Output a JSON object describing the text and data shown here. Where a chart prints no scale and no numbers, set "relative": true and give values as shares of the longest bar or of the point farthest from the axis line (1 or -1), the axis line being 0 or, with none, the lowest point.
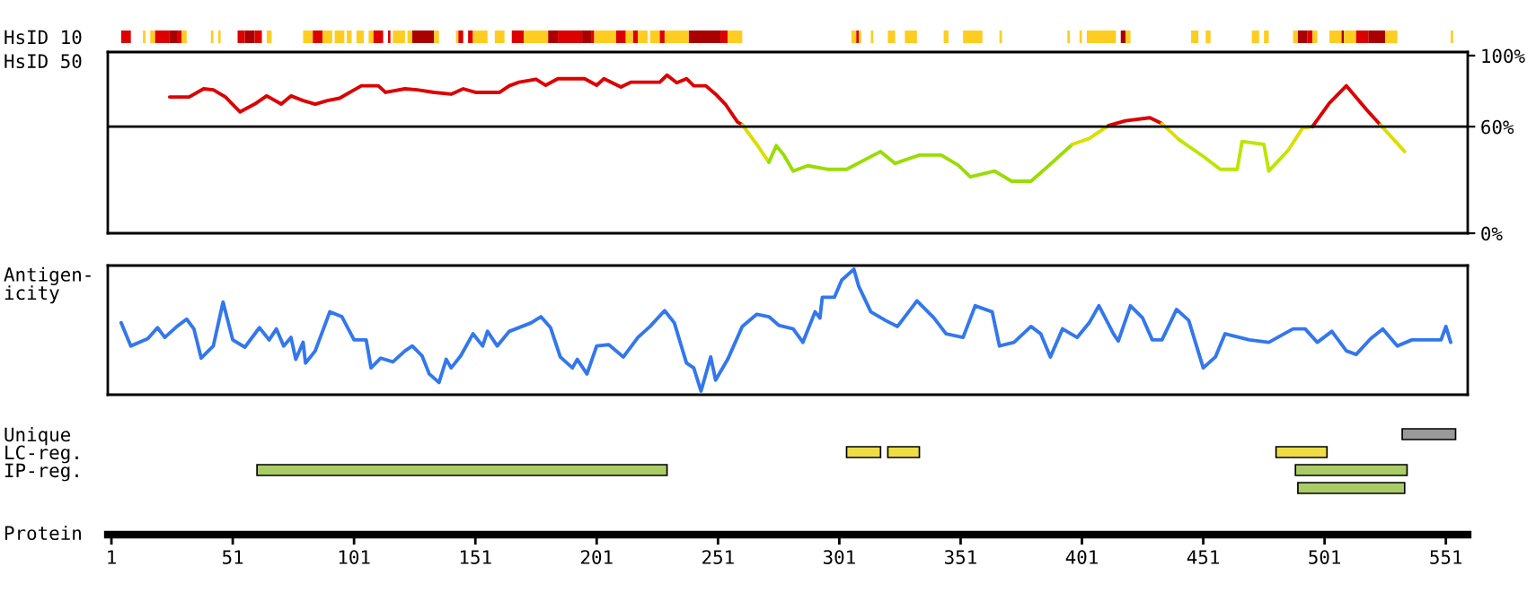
{
  "chart_data": [
    {
      "type": "bar",
      "orientation": "horizontal",
      "categories": [
        "HsID 10"
      ],
      "xlim": [
        -0.5,
        560
      ],
      "tick_labels": "y",
      "series": [
        {
          "color": "#dd0000",
          "base": [
            5
          ],
          "values": [
            4
          ]
        },
        {
          "color": "#ffcc22",
          "base": [
            14
          ],
          "values": [
            1
          ]
        },
        {
          "color": "#ffcc22",
          "base": [
            17
          ],
          "values": [
            2
          ]
        },
        {
          "color": "#dd0000",
          "base": [
            19
          ],
          "values": [
            6
          ]
        },
        {
          "color": "#aa0000",
          "base": [
            25
          ],
          "values": [
            3
          ]
        },
        {
          "color": "#dd0000",
          "base": [
            28
          ],
          "values": [
            2
          ]
        },
        {
          "color": "#ffcc22",
          "base": [
            30
          ],
          "values": [
            2
          ]
        },
        {
          "color": "#ffcc22",
          "base": [
            42
          ],
          "values": [
            1
          ]
        },
        {
          "color": "#ffcc22",
          "base": [
            45
          ],
          "values": [
            1
          ]
        },
        {
          "color": "#dd0000",
          "base": [
            53
          ],
          "values": [
            3
          ]
        },
        {
          "color": "#aa0000",
          "base": [
            56
          ],
          "values": [
            4
          ]
        },
        {
          "color": "#dd0000",
          "base": [
            60
          ],
          "values": [
            3
          ]
        },
        {
          "color": "#ffcc22",
          "base": [
            65
          ],
          "values": [
            2
          ]
        },
        {
          "color": "#ffcc22",
          "base": [
            80
          ],
          "values": [
            4
          ]
        },
        {
          "color": "#dd0000",
          "base": [
            84
          ],
          "values": [
            4
          ]
        },
        {
          "color": "#ffcc22",
          "base": [
            88
          ],
          "values": [
            4
          ]
        },
        {
          "color": "#ffcc22",
          "base": [
            93
          ],
          "values": [
            4
          ]
        },
        {
          "color": "#ffcc22",
          "base": [
            98
          ],
          "values": [
            2
          ]
        },
        {
          "color": "#ffcc22",
          "base": [
            102
          ],
          "values": [
            3
          ]
        },
        {
          "color": "#ffcc22",
          "base": [
            107
          ],
          "values": [
            2
          ]
        },
        {
          "color": "#dd0000",
          "base": [
            109
          ],
          "values": [
            4
          ]
        },
        {
          "color": "#dd0000",
          "base": [
            115
          ],
          "values": [
            1
          ]
        },
        {
          "color": "#ffcc22",
          "base": [
            117
          ],
          "values": [
            5
          ]
        },
        {
          "color": "#ffcc22",
          "base": [
            123
          ],
          "values": [
            2
          ]
        },
        {
          "color": "#aa0000",
          "base": [
            125
          ],
          "values": [
            9
          ]
        },
        {
          "color": "#ffcc22",
          "base": [
            134
          ],
          "values": [
            2
          ]
        },
        {
          "color": "#ffcc22",
          "base": [
            143
          ],
          "values": [
            1
          ]
        },
        {
          "color": "#dd0000",
          "base": [
            144
          ],
          "values": [
            2
          ]
        },
        {
          "color": "#dd0000",
          "base": [
            148
          ],
          "values": [
            2
          ]
        },
        {
          "color": "#ffcc22",
          "base": [
            150
          ],
          "values": [
            6
          ]
        },
        {
          "color": "#ffcc22",
          "base": [
            159
          ],
          "values": [
            4
          ]
        },
        {
          "color": "#dd0000",
          "base": [
            166
          ],
          "values": [
            5
          ]
        },
        {
          "color": "#ffcc22",
          "base": [
            171
          ],
          "values": [
            10
          ]
        },
        {
          "color": "#aa0000",
          "base": [
            181
          ],
          "values": [
            4
          ]
        },
        {
          "color": "#dd0000",
          "base": [
            185
          ],
          "values": [
            10
          ]
        },
        {
          "color": "#aa0000",
          "base": [
            195
          ],
          "values": [
            4
          ]
        },
        {
          "color": "#dd0000",
          "base": [
            199
          ],
          "values": [
            1
          ]
        },
        {
          "color": "#ffcc22",
          "base": [
            200
          ],
          "values": [
            9
          ]
        },
        {
          "color": "#dd0000",
          "base": [
            209
          ],
          "values": [
            4
          ]
        },
        {
          "color": "#ffcc22",
          "base": [
            213
          ],
          "values": [
            3
          ]
        },
        {
          "color": "#dd0000",
          "base": [
            216
          ],
          "values": [
            2
          ]
        },
        {
          "color": "#ffcc22",
          "base": [
            218
          ],
          "values": [
            4
          ]
        },
        {
          "color": "#ffcc22",
          "base": [
            223
          ],
          "values": [
            4
          ]
        },
        {
          "color": "#dd0000",
          "base": [
            227
          ],
          "values": [
            2
          ]
        },
        {
          "color": "#ffcc22",
          "base": [
            229
          ],
          "values": [
            10
          ]
        },
        {
          "color": "#aa0000",
          "base": [
            239
          ],
          "values": [
            13
          ]
        },
        {
          "color": "#dd0000",
          "base": [
            252
          ],
          "values": [
            3
          ]
        },
        {
          "color": "#ffcc22",
          "base": [
            255
          ],
          "values": [
            6
          ]
        },
        {
          "color": "#ffcc22",
          "base": [
            306
          ],
          "values": [
            2
          ]
        },
        {
          "color": "#dd0000",
          "base": [
            308
          ],
          "values": [
            1
          ]
        },
        {
          "color": "#ffcc22",
          "base": [
            309
          ],
          "values": [
            1
          ]
        },
        {
          "color": "#ffcc22",
          "base": [
            314
          ],
          "values": [
            1
          ]
        },
        {
          "color": "#ffcc22",
          "base": [
            321
          ],
          "values": [
            3
          ]
        },
        {
          "color": "#ffcc22",
          "base": [
            328
          ],
          "values": [
            5
          ]
        },
        {
          "color": "#ffcc22",
          "base": [
            344
          ],
          "values": [
            2
          ]
        },
        {
          "color": "#ffcc22",
          "base": [
            352
          ],
          "values": [
            8
          ]
        },
        {
          "color": "#ffcc22",
          "base": [
            367
          ],
          "values": [
            1
          ]
        },
        {
          "color": "#ffcc22",
          "base": [
            395
          ],
          "values": [
            1
          ]
        },
        {
          "color": "#ffcc22",
          "base": [
            400
          ],
          "values": [
            1
          ]
        },
        {
          "color": "#ffcc22",
          "base": [
            403
          ],
          "values": [
            12
          ]
        },
        {
          "color": "#aa0000",
          "base": [
            417
          ],
          "values": [
            2
          ]
        },
        {
          "color": "#ffcc22",
          "base": [
            419
          ],
          "values": [
            2
          ]
        },
        {
          "color": "#ffcc22",
          "base": [
            446
          ],
          "values": [
            3
          ]
        },
        {
          "color": "#ffcc22",
          "base": [
            452
          ],
          "values": [
            2
          ]
        },
        {
          "color": "#ffcc22",
          "base": [
            471
          ],
          "values": [
            3
          ]
        },
        {
          "color": "#ffcc22",
          "base": [
            476
          ],
          "values": [
            2
          ]
        },
        {
          "color": "#ffcc22",
          "base": [
            488
          ],
          "values": [
            2
          ]
        },
        {
          "color": "#aa0000",
          "base": [
            490
          ],
          "values": [
            4
          ]
        },
        {
          "color": "#dd0000",
          "base": [
            494
          ],
          "values": [
            2
          ]
        },
        {
          "color": "#ffcc22",
          "base": [
            496
          ],
          "values": [
            2
          ]
        },
        {
          "color": "#ffcc22",
          "base": [
            503
          ],
          "values": [
            5
          ]
        },
        {
          "color": "#aa0000",
          "base": [
            508
          ],
          "values": [
            1
          ]
        },
        {
          "color": "#ffcc22",
          "base": [
            509
          ],
          "values": [
            5
          ]
        },
        {
          "color": "#dd0000",
          "base": [
            514
          ],
          "values": [
            5
          ]
        },
        {
          "color": "#aa0000",
          "base": [
            519
          ],
          "values": [
            7
          ]
        },
        {
          "color": "#ffcc22",
          "base": [
            526
          ],
          "values": [
            5
          ]
        },
        {
          "color": "#ffcc22",
          "base": [
            553
          ],
          "values": [
            1
          ]
        }
      ]
    },
    {
      "type": "line",
      "ylabel": "HsID 50",
      "xlim": [
        -0.5,
        560
      ],
      "ylim": [
        0,
        102
      ],
      "yticks": [
        {
          "value": 0,
          "label": "0%"
        },
        {
          "value": 60,
          "label": "60%"
        },
        {
          "value": 100,
          "label": "100%"
        }
      ],
      "tick_labels": "y",
      "ref_lines": [
        {
          "axis": "y",
          "value": 60,
          "color": "#000000"
        }
      ],
      "series": [
        {
          "color": "#dd0000",
          "x": [
            25,
            33,
            39,
            43,
            48,
            54,
            60,
            65,
            71,
            75,
            80,
            85,
            90,
            95,
            104,
            111,
            114,
            122,
            127,
            134,
            141,
            146,
            151,
            161,
            165,
            169,
            176,
            180,
            185,
            196,
            201,
            204,
            211,
            215,
            227,
            230,
            234,
            238,
            241,
            246,
            250,
            254,
            259,
            261
          ],
          "values": [
            76.7,
            76.7,
            81.3,
            80.7,
            76.7,
            68.3,
            72.7,
            77.3,
            72.7,
            77.3,
            74.7,
            72.7,
            74.7,
            76,
            83,
            83,
            79.3,
            81.3,
            80.7,
            79.3,
            78.3,
            81.3,
            79.3,
            79.3,
            83,
            85,
            86.7,
            83.3,
            87,
            87,
            83.3,
            87,
            82.3,
            85,
            85,
            89,
            84.7,
            87,
            83,
            83,
            78.3,
            72.7,
            62.7,
            61
          ]
        },
        {
          "color": "#dddd00",
          "x": [
            261,
            267,
            272
          ],
          "values": [
            61,
            50,
            40
          ]
        },
        {
          "color": "#99dd00",
          "x": [
            272,
            275,
            278,
            282,
            288,
            296,
            304,
            318,
            324,
            334,
            343,
            350,
            355,
            365,
            372,
            380,
            387,
            397
          ],
          "values": [
            40,
            49.3,
            44.3,
            35,
            38,
            36,
            36,
            46,
            39.3,
            44,
            44,
            38.3,
            31.7,
            35,
            29.3,
            29.3,
            37.7,
            50
          ]
        },
        {
          "color": "#dddd00",
          "x": [
            397,
            404,
            412
          ],
          "values": [
            50,
            53.3,
            60.7
          ]
        },
        {
          "color": "#dd0000",
          "x": [
            412,
            419,
            429,
            434
          ],
          "values": [
            60.7,
            63.3,
            65,
            61.7
          ]
        },
        {
          "color": "#dddd00",
          "x": [
            434,
            441
          ],
          "values": [
            61.7,
            52.7
          ]
        },
        {
          "color": "#bbe600",
          "x": [
            441,
            451,
            458,
            465,
            467,
            476,
            478,
            486
          ],
          "values": [
            52.7,
            43.3,
            36,
            36,
            51.7,
            50,
            35,
            46.7
          ]
        },
        {
          "color": "#dddd00",
          "x": [
            486,
            492,
            496
          ],
          "values": [
            46.7,
            59.3,
            60
          ]
        },
        {
          "color": "#dd0000",
          "x": [
            496,
            503,
            510,
            518,
            524
          ],
          "values": [
            60,
            73.3,
            83,
            70,
            61
          ]
        },
        {
          "color": "#dddd00",
          "x": [
            524,
            534
          ],
          "values": [
            61,
            46
          ]
        }
      ]
    },
    {
      "type": "line",
      "ylabel": "Antigen-\nicity",
      "xlim": [
        -0.5,
        560
      ],
      "relative": true,
      "tick_labels": false,
      "series": [
        {
          "color": "#3377ee",
          "x": [
            5,
            9,
            16,
            20,
            23,
            28,
            32,
            35,
            38,
            43,
            47,
            51,
            56,
            62,
            66,
            69,
            72,
            75,
            77,
            80,
            81,
            85,
            91,
            96,
            101,
            106,
            108,
            112,
            117,
            122,
            125,
            129,
            132,
            136,
            139,
            141,
            145,
            150,
            154,
            156,
            160,
            165,
            174,
            178,
            182,
            186,
            191,
            193,
            197,
            201,
            206,
            212,
            218,
            223,
            229,
            233,
            238,
            241,
            244,
            248,
            250,
            255,
            261,
            267,
            272,
            276,
            282,
            286,
            291,
            293,
            294,
            299,
            302,
            307,
            309,
            314,
            320,
            325,
            333,
            340,
            345,
            352,
            357,
            364,
            367,
            373,
            380,
            384,
            388,
            393,
            399,
            404,
            408,
            414,
            416,
            421,
            426,
            430,
            434,
            440,
            445,
            451,
            456,
            460,
            470,
            478,
            488,
            493,
            498,
            504,
            510,
            514,
            520,
            525,
            531,
            537,
            542,
            549,
            551,
            553
          ],
          "values": [
            0.56,
            0.37,
            0.43,
            0.52,
            0.44,
            0.53,
            0.59,
            0.51,
            0.27,
            0.37,
            0.73,
            0.42,
            0.36,
            0.52,
            0.42,
            0.51,
            0.37,
            0.44,
            0.26,
            0.4,
            0.23,
            0.33,
            0.65,
            0.61,
            0.42,
            0.42,
            0.19,
            0.27,
            0.24,
            0.33,
            0.37,
            0.29,
            0.14,
            0.07,
            0.26,
            0.19,
            0.29,
            0.47,
            0.37,
            0.49,
            0.37,
            0.49,
            0.56,
            0.61,
            0.52,
            0.28,
            0.19,
            0.26,
            0.14,
            0.37,
            0.38,
            0.28,
            0.44,
            0.53,
            0.66,
            0.56,
            0.23,
            0.19,
            0,
            0.28,
            0.09,
            0.26,
            0.53,
            0.63,
            0.61,
            0.54,
            0.51,
            0.4,
            0.65,
            0.6,
            0.77,
            0.77,
            0.91,
            1,
            0.86,
            0.65,
            0.58,
            0.53,
            0.74,
            0.6,
            0.47,
            0.44,
            0.7,
            0.65,
            0.37,
            0.4,
            0.53,
            0.47,
            0.28,
            0.51,
            0.44,
            0.56,
            0.7,
            0.47,
            0.41,
            0.7,
            0.6,
            0.42,
            0.42,
            0.67,
            0.58,
            0.19,
            0.28,
            0.47,
            0.42,
            0.4,
            0.51,
            0.51,
            0.4,
            0.49,
            0.33,
            0.3,
            0.43,
            0.51,
            0.37,
            0.42,
            0.42,
            0.42,
            0.53,
            0.4
          ]
        }
      ]
    },
    {
      "type": "bar",
      "orientation": "horizontal",
      "categories": [
        "Unique",
        "LC-reg.",
        "IP-reg.",
        null
      ],
      "xlabel": "Protein",
      "xlim": [
        -0.5,
        560
      ],
      "xticks": [
        1,
        51,
        101,
        151,
        201,
        251,
        301,
        351,
        401,
        451,
        501,
        551
      ],
      "series": [
        {
          "color": "#999999",
          "base": [
            533,
            null,
            null,
            null
          ],
          "values": [
            22,
            null,
            null,
            null
          ]
        },
        {
          "color": "#eedd44",
          "base": [
            null,
            304,
            null,
            null
          ],
          "values": [
            null,
            14,
            null,
            null
          ]
        },
        {
          "color": "#eedd44",
          "base": [
            null,
            321,
            null,
            null
          ],
          "values": [
            null,
            13,
            null,
            null
          ]
        },
        {
          "color": "#eedd44",
          "base": [
            null,
            481,
            null,
            null
          ],
          "values": [
            null,
            21,
            null,
            null
          ]
        },
        {
          "color": "#aacc66",
          "base": [
            null,
            null,
            61,
            null
          ],
          "values": [
            null,
            null,
            169,
            null
          ]
        },
        {
          "color": "#aacc66",
          "base": [
            null,
            null,
            489,
            null
          ],
          "values": [
            null,
            null,
            46,
            null
          ]
        },
        {
          "color": "#aacc66",
          "base": [
            null,
            null,
            null,
            490
          ],
          "values": [
            null,
            null,
            null,
            44
          ]
        }
      ]
    }
  ]
}
